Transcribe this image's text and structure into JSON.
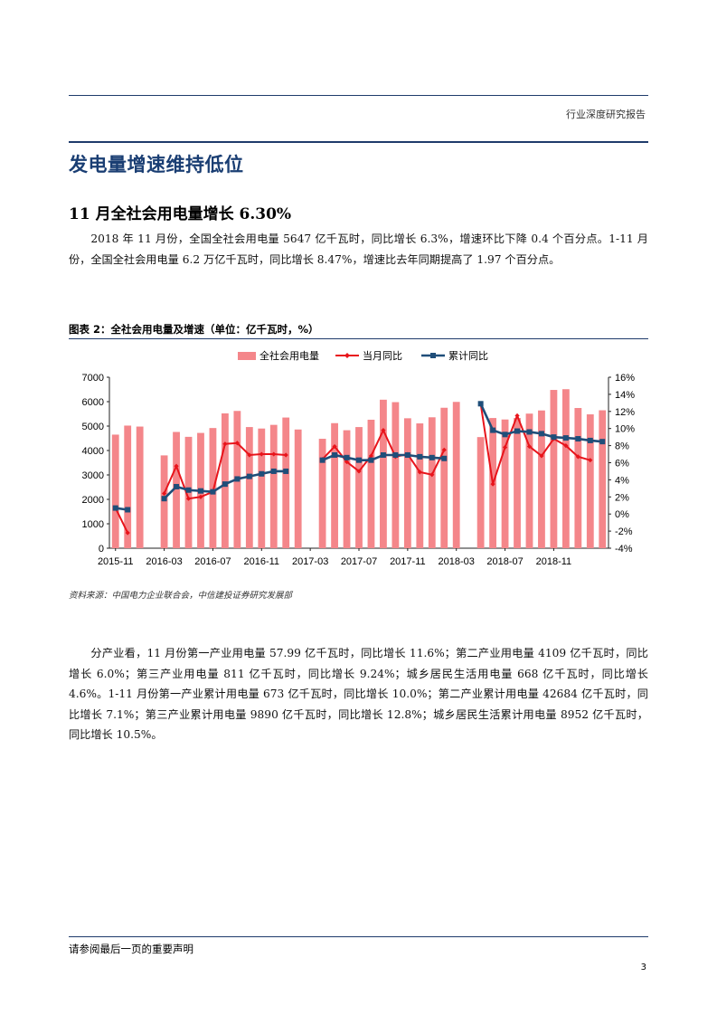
{
  "header": {
    "tag": "行业深度研究报告"
  },
  "section_title": "发电量增速维持低位",
  "subsection_title": "11 月全社会用电量增长 6.30%",
  "paragraph1": "2018 年 11 月份，全国全社会用电量 5647 亿千瓦时，同比增长 6.3%，增速环比下降 0.4 个百分点。1-11 月份，全国全社会用电量 6.2 万亿千瓦时，同比增长 8.47%，增速比去年同期提高了 1.97 个百分点。",
  "figure": {
    "title": "图表 2：全社会用电量及增速（单位：亿千瓦时，%）",
    "source": "资料来源：中国电力企业联合会，中信建投证券研究发展部"
  },
  "chart_data": {
    "type": "bar",
    "legend_position": "top",
    "bar_color": "#f4868a",
    "line1_color": "#e8141b",
    "line2_color": "#1f4e79",
    "series": [
      {
        "name": "全社会用电量",
        "values": [
          4650,
          5020,
          4980,
          null,
          3800,
          4760,
          4560,
          4720,
          4920,
          5520,
          5620,
          4960,
          4900,
          5050,
          5350,
          4860,
          null,
          4480,
          5120,
          4830,
          4960,
          5260,
          6080,
          5980,
          5320,
          5110,
          5360,
          5750,
          5990,
          null,
          4550,
          5330,
          5270,
          5330,
          5510,
          5640,
          6480,
          6510,
          5740,
          5480,
          5647
        ],
        "axis": "left"
      },
      {
        "name": "当月同比",
        "values": [
          0.7,
          -2.2,
          null,
          null,
          2.4,
          5.6,
          1.8,
          2.0,
          2.6,
          8.2,
          8.3,
          6.9,
          7.0,
          7.0,
          6.9,
          null,
          null,
          6.4,
          7.9,
          6.1,
          5.0,
          6.8,
          9.8,
          6.7,
          7.0,
          4.9,
          4.6,
          7.5,
          null,
          null,
          12.9,
          3.5,
          7.8,
          11.5,
          7.9,
          6.8,
          8.8,
          8.0,
          6.7,
          6.3,
          null
        ],
        "axis": "right"
      },
      {
        "name": "累计同比",
        "values": [
          0.7,
          0.5,
          null,
          null,
          1.8,
          3.2,
          2.8,
          2.7,
          2.6,
          3.5,
          4.1,
          4.4,
          4.7,
          5.0,
          5.0,
          null,
          null,
          6.3,
          6.9,
          6.6,
          6.3,
          6.3,
          6.9,
          6.9,
          6.9,
          6.7,
          6.6,
          6.5,
          null,
          null,
          12.9,
          9.8,
          9.3,
          9.7,
          9.6,
          9.4,
          9.0,
          8.9,
          8.8,
          8.6,
          8.47
        ],
        "axis": "right"
      }
    ],
    "x_tick_labels": [
      "2015-11",
      "2016-03",
      "2016-07",
      "2016-11",
      "2017-03",
      "2017-07",
      "2017-11",
      "2018-03",
      "2018-07",
      "2018-11"
    ],
    "left_axis": {
      "ticks": [
        "0",
        "1000",
        "2000",
        "3000",
        "4000",
        "5000",
        "6000",
        "7000"
      ],
      "ylim": [
        0,
        7000
      ]
    },
    "right_axis": {
      "ticks": [
        "-4%",
        "-2%",
        "0%",
        "2%",
        "4%",
        "6%",
        "8%",
        "10%",
        "12%",
        "14%",
        "16%"
      ],
      "ylim": [
        -4,
        16
      ]
    }
  },
  "paragraph2": "分产业看，11 月份第一产业用电量 57.99 亿千瓦时，同比增长 11.6%；第二产业用电量 4109 亿千瓦时，同比增长 6.0%；第三产业用电量 811 亿千瓦时，同比增长 9.24%；城乡居民生活用电量 668 亿千瓦时，同比增长 4.6%。1-11 月份第一产业累计用电量 673 亿千瓦时，同比增长 10.0%；第二产业累计用电量 42684 亿千瓦时，同比增长 7.1%；第三产业累计用电量 9890 亿千瓦时，同比增长 12.8%；城乡居民生活累计用电量 8952 亿千瓦时，同比增长 10.5%。",
  "footer": {
    "note": "请参阅最后一页的重要声明",
    "page_number": "3"
  }
}
